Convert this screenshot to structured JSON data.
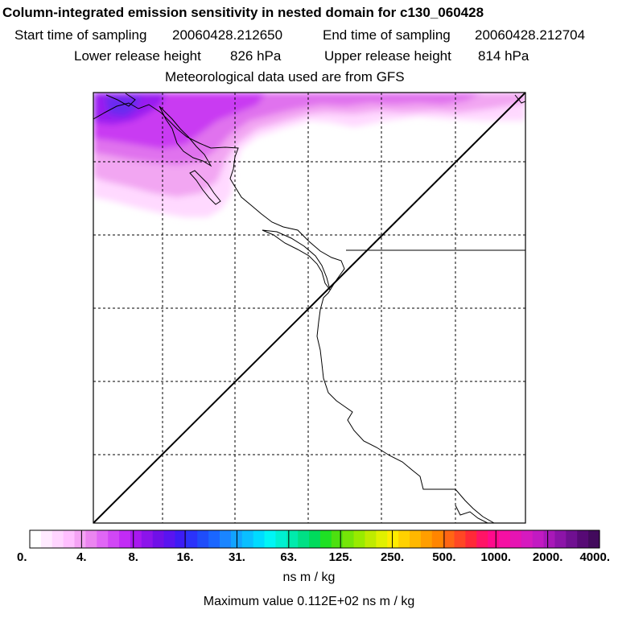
{
  "chart_data": {
    "type": "heatmap",
    "title": "Column-integrated emission sensitivity in nested domain for c130_060428",
    "info": {
      "start_label": "Start time of sampling",
      "start_value": "20060428.212650",
      "end_label": "End time of sampling",
      "end_value": "20060428.212704",
      "lower_label": "Lower release height",
      "lower_value": "826 hPa",
      "upper_label": "Upper release height",
      "upper_value": "814 hPa",
      "met_line": "Meteorological data used are from GFS"
    },
    "colorbar": {
      "tick_labels": [
        "0.",
        "4.",
        "8.",
        "16.",
        "31.",
        "63.",
        "125.",
        "250.",
        "500.",
        "1000.",
        "2000.",
        "4000."
      ],
      "colors": [
        "#ffffff",
        "#ffeaff",
        "#ffd5ff",
        "#ffbfff",
        "#f5a3f5",
        "#eb85f0",
        "#e066f5",
        "#d147f5",
        "#c22bf5",
        "#a818f0",
        "#8c14eb",
        "#7010e8",
        "#5914f0",
        "#3d1cf5",
        "#2b33fa",
        "#1f4dfa",
        "#1a66ff",
        "#1a85ff",
        "#12a3ff",
        "#0abfff",
        "#00dbff",
        "#00f5f5",
        "#00f0d1",
        "#00ebad",
        "#00e085",
        "#00db5c",
        "#1fe024",
        "#4de010",
        "#75e608",
        "#99eb00",
        "#bfeb00",
        "#e0f000",
        "#ffeb00",
        "#ffd100",
        "#ffb800",
        "#ff9e00",
        "#ff8500",
        "#ff6614",
        "#ff4724",
        "#ff2938",
        "#ff1466",
        "#ff0a8c",
        "#f510a3",
        "#e614b3",
        "#d61abf",
        "#c21ac2",
        "#a818b8",
        "#8c14a8",
        "#701091",
        "#570a75",
        "#420a5c"
      ],
      "units": "ns m / kg"
    },
    "max_value_text": "Maximum value  0.112E+02 ns m / kg"
  }
}
